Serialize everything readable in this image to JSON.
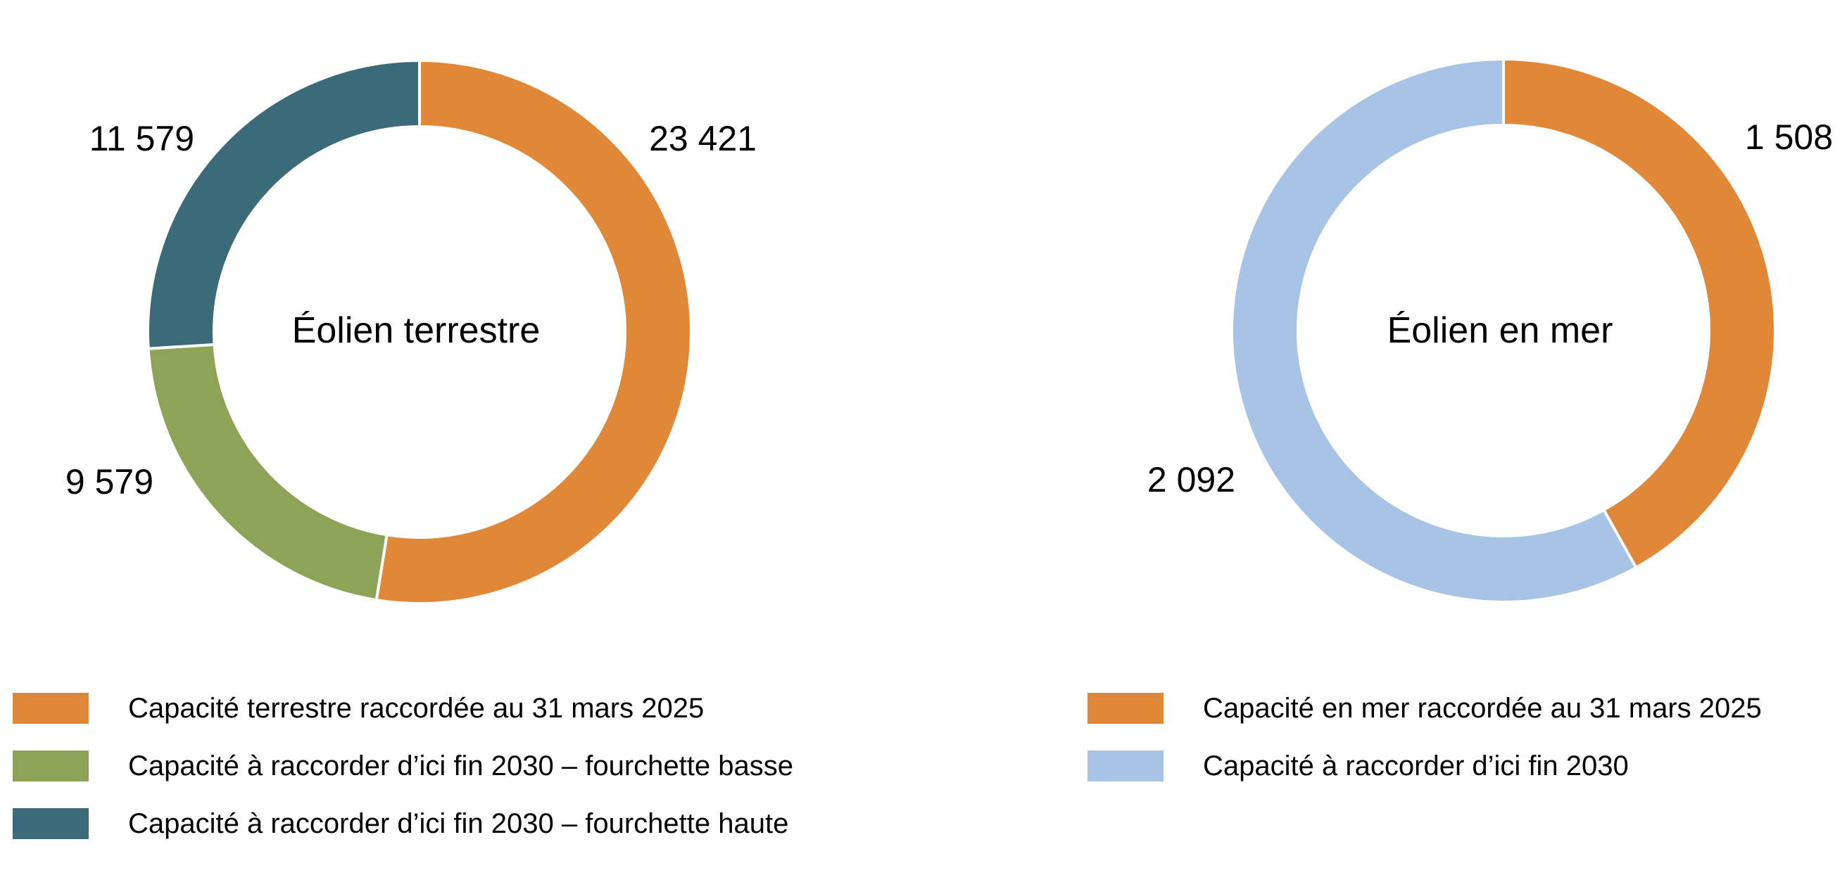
{
  "chart_data": [
    {
      "type": "pie",
      "title": "Éolien terrestre",
      "donut": true,
      "categories": [
        "Capacité terrestre raccordée au 31 mars 2025",
        "Capacité à raccorder d’ici fin 2030 – fourchette basse",
        "Capacité à raccorder d’ici fin 2030 – fourchette haute"
      ],
      "values": [
        23421,
        9579,
        11579
      ],
      "value_labels": [
        "23 421",
        "9 579",
        "11 579"
      ],
      "colors": [
        "#E08838",
        "#8DA357",
        "#3B6A79"
      ],
      "legend_position": "bottom"
    },
    {
      "type": "pie",
      "title": "Éolien en mer",
      "donut": true,
      "categories": [
        "Capacité en mer raccordée au 31 mars 2025",
        "Capacité à raccorder d’ici fin 2030"
      ],
      "values": [
        1508,
        2092
      ],
      "value_labels": [
        "1 508",
        "2 092"
      ],
      "colors": [
        "#E08838",
        "#A7C3E5"
      ],
      "legend_position": "bottom"
    }
  ]
}
